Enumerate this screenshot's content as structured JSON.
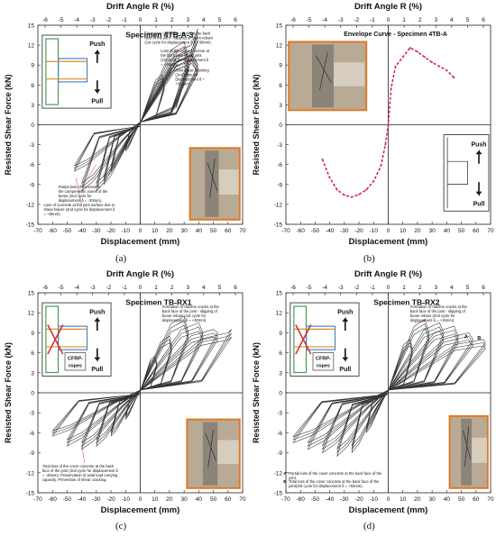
{
  "captions": [
    "(a)",
    "(b)",
    "(c)",
    "(d)"
  ],
  "chart_data": [
    {
      "type": "line",
      "title": "Specimen 4TB-A-3",
      "top_axis_label": "Drift Angle R (%)",
      "top_ticks": [
        "-6",
        "-5",
        "-4",
        "-3",
        "-2",
        "-1",
        "0",
        "1",
        "2",
        "3",
        "4",
        "5",
        "6"
      ],
      "xlabel": "Displacement (mm)",
      "ylabel": "Resisted Shear Force (kN)",
      "xlim": [
        -70,
        70
      ],
      "ylim": [
        -15,
        15
      ],
      "x_ticks": [
        -70,
        -60,
        -50,
        -40,
        -30,
        -20,
        -10,
        0,
        10,
        20,
        30,
        40,
        50,
        60,
        70
      ],
      "y_ticks": [
        -15,
        -12,
        -9,
        -6,
        -3,
        0,
        3,
        6,
        9,
        12,
        15
      ],
      "grid": false,
      "amplitudes": [
        [
          35,
          15,
          12.0,
          14.5,
          -45,
          -7.0
        ],
        [
          30,
          10,
          12.5,
          10.0,
          -40,
          -10.0
        ],
        [
          35,
          15,
          11.0,
          9.0,
          -30,
          -10.0
        ],
        [
          35,
          15,
          10.5,
          9.0,
          -25,
          -9.0
        ],
        [
          30,
          10,
          10.0,
          8.5,
          -20,
          -7.0
        ],
        [
          15,
          5,
          7.5,
          6.0,
          -10,
          -4.0
        ]
      ],
      "inset_labels": {
        "push": "Push",
        "pull": "Pull"
      },
      "annotations": [
        "Formation of hairline cracks at the back face of the joint - slipping of beam rebars (1st cycle for displacement δ = +30mm).",
        "Loss of the cover concrete at the back face of the joint (1st cycle for displacement δ = +35mm).",
        "Joint shear cracking (2nd cycle for Displacement δ = +35mm).",
        "Partial loss of concrete in the compression zones of the beam (2nd cycle for displacement δ = -30mm).",
        "Loss of concrete at the joint surface due to shear failure (2nd cycle for displacement δ = -45mm)."
      ]
    },
    {
      "type": "line",
      "title": "Envelope Curve - Specimen 4TB-A",
      "top_axis_label": "Drift Angle R (%)",
      "top_ticks": [
        "-6",
        "-5",
        "-4",
        "-3",
        "-2",
        "-1",
        "0",
        "1",
        "2",
        "3",
        "4",
        "5",
        "6"
      ],
      "xlabel": "Displacement (mm)",
      "ylabel": "Resisted Shear Force (kN)",
      "xlim": [
        -70,
        70
      ],
      "ylim": [
        -15,
        15
      ],
      "x_ticks": [
        -70,
        -60,
        -50,
        -40,
        -30,
        -20,
        -10,
        0,
        10,
        20,
        30,
        40,
        50,
        60,
        70
      ],
      "y_ticks": [
        -15,
        -12,
        -9,
        -6,
        -3,
        0,
        3,
        6,
        9,
        12,
        15
      ],
      "grid": false,
      "series": [
        {
          "color": "#d21f5f",
          "x": [
            -45,
            -40,
            -35,
            -30,
            -25,
            -20,
            -15,
            -10,
            -5,
            -2,
            0,
            2,
            5,
            10,
            15,
            20,
            25,
            30,
            35,
            40,
            45
          ],
          "y": [
            -5.2,
            -8.0,
            -9.8,
            -10.6,
            -10.9,
            -10.5,
            -9.8,
            -8.5,
            -6.2,
            -3.0,
            0,
            5.5,
            8.8,
            10.2,
            11.6,
            11.0,
            10.2,
            9.4,
            8.8,
            8.2,
            7.1
          ]
        }
      ],
      "inset_labels": {
        "push": "Push",
        "pull": "Pull"
      }
    },
    {
      "type": "line",
      "title": "Specimen TB-RX1",
      "top_axis_label": "Drift Angle R (%)",
      "top_ticks": [
        "-6",
        "-5",
        "-4",
        "-3",
        "-2",
        "-1",
        "0",
        "1",
        "2",
        "3",
        "4",
        "5",
        "6"
      ],
      "xlabel": "Displacement (mm)",
      "ylabel": "Resisted Shear Force (kN)",
      "xlim": [
        -70,
        70
      ],
      "ylim": [
        -15,
        15
      ],
      "x_ticks": [
        -70,
        -60,
        -50,
        -40,
        -30,
        -20,
        -10,
        0,
        10,
        20,
        30,
        40,
        50,
        60,
        70
      ],
      "y_ticks": [
        -15,
        -12,
        -9,
        -6,
        -3,
        0,
        3,
        6,
        9,
        12,
        15
      ],
      "grid": false,
      "amplitudes": [
        [
          60,
          8,
          9.0,
          9.5,
          -60,
          -6.5
        ],
        [
          50,
          10,
          9.5,
          9.0,
          -50,
          -8.0
        ],
        [
          40,
          10,
          10.5,
          9.0,
          -40,
          -8.5
        ],
        [
          30,
          10,
          11.5,
          9.0,
          -30,
          -8.0
        ],
        [
          20,
          5,
          8.5,
          7.0,
          -20,
          -6.5
        ],
        [
          10,
          5,
          5.5,
          4.5,
          -10,
          -4.0
        ]
      ],
      "inset_labels": {
        "push": "Push",
        "pull": "Pull",
        "rope": "CFRP-ropes"
      },
      "annotations": [
        "Formation of hairline cracks at the back face of the joint - slipping of beam rebars (1st cycle for displacement δ = +30mm).",
        "Total loss of the cover concrete at the back face of the joint (2nd cycle for displacement δ = -40mm). Preservation of axial load carrying capacity. Prevention of shear cracking."
      ]
    },
    {
      "type": "line",
      "title": "Specimen TB-RX2",
      "top_axis_label": "Drift Angle R (%)",
      "top_ticks": [
        "-6",
        "-5",
        "-4",
        "-3",
        "-2",
        "-1",
        "0",
        "1",
        "2",
        "3",
        "4",
        "5",
        "6"
      ],
      "xlabel": "Displacement (mm)",
      "ylabel": "Resisted Shear Force (kN)",
      "xlim": [
        -70,
        70
      ],
      "ylim": [
        -15,
        15
      ],
      "x_ticks": [
        -70,
        -60,
        -50,
        -40,
        -30,
        -20,
        -10,
        0,
        10,
        20,
        30,
        40,
        50,
        60,
        70
      ],
      "y_ticks": [
        -15,
        -12,
        -9,
        -6,
        -3,
        0,
        3,
        6,
        9,
        12,
        15
      ],
      "grid": false,
      "amplitudes": [
        [
          65,
          5,
          8.0,
          7.5,
          -65,
          -7.5
        ],
        [
          55,
          10,
          9.0,
          8.0,
          -55,
          -8.5
        ],
        [
          45,
          10,
          10.0,
          8.5,
          -45,
          -9.0
        ],
        [
          35,
          10,
          10.5,
          9.0,
          -35,
          -9.5
        ],
        [
          25,
          10,
          11.0,
          9.0,
          -25,
          -9.0
        ],
        [
          15,
          5,
          8.0,
          6.5,
          -15,
          -6.0
        ]
      ],
      "inset_labels": {
        "push": "Push",
        "pull": "Pull",
        "rope": "CFRP-ropes"
      },
      "markers": [
        "A",
        "B"
      ],
      "annotations": [
        "Formation of hairline cracks at the back face of the joint - slipping of beam rebars (2nd cycle for displacement δ = +15mm).",
        "Partial loss of the cover concrete at the back face of the joint",
        "Total loss of the cover concrete at the back face of the joint(3rd cycle for displacement δ = +50mm)."
      ]
    }
  ]
}
